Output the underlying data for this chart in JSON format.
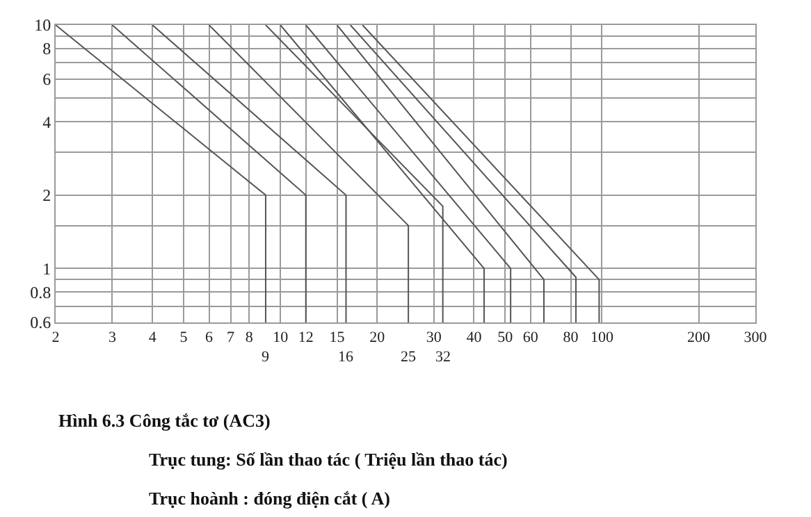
{
  "chart_data": {
    "type": "line",
    "log": "xy",
    "grid": true,
    "marker": "none",
    "line_style": "solid",
    "xlim": [
      2,
      300
    ],
    "ylim": [
      0.6,
      10
    ],
    "xticks": [
      2,
      3,
      4,
      5,
      6,
      7,
      8,
      10,
      12,
      15,
      20,
      30,
      40,
      50,
      60,
      80,
      100,
      200,
      300
    ],
    "yticks": [
      0.6,
      {
        "value": 0.7,
        "label": null
      },
      0.8,
      {
        "value": 0.9,
        "label": null
      },
      1,
      {
        "value": 1.5,
        "label": null
      },
      2,
      {
        "value": 3,
        "label": null
      },
      4,
      {
        "value": 5,
        "label": null
      },
      6,
      {
        "value": 7,
        "label": null
      },
      8,
      {
        "value": 9,
        "label": null
      },
      10
    ],
    "series": [
      {
        "color": "#555555",
        "x": [
          2,
          9,
          9
        ],
        "values": [
          10,
          2,
          0.6
        ]
      },
      {
        "color": "#555555",
        "x": [
          3,
          12,
          12
        ],
        "values": [
          10,
          2,
          0.6
        ]
      },
      {
        "color": "#555555",
        "x": [
          4,
          16,
          16
        ],
        "values": [
          10,
          2,
          0.6
        ]
      },
      {
        "color": "#555555",
        "x": [
          6,
          25,
          25
        ],
        "values": [
          10,
          1.5,
          0.6
        ]
      },
      {
        "color": "#555555",
        "x": [
          9,
          32,
          32
        ],
        "values": [
          10,
          1.8,
          0.6
        ]
      },
      {
        "color": "#555555",
        "x": [
          10,
          43,
          43
        ],
        "values": [
          10,
          1,
          0.6
        ]
      },
      {
        "color": "#555555",
        "x": [
          12,
          52,
          52
        ],
        "values": [
          10,
          1,
          0.6
        ]
      },
      {
        "color": "#555555",
        "x": [
          15,
          66,
          66
        ],
        "values": [
          10,
          0.9,
          0.6
        ]
      },
      {
        "color": "#555555",
        "x": [
          16.5,
          83,
          83
        ],
        "values": [
          10,
          0.92,
          0.6
        ]
      },
      {
        "color": "#555555",
        "x": [
          18,
          98,
          98
        ],
        "values": [
          10,
          0.9,
          0.6
        ]
      }
    ],
    "annotations": [
      {
        "text": "9",
        "x": 9,
        "y": 0.6
      },
      {
        "text": "16",
        "x": 16,
        "y": 0.6
      },
      {
        "text": "25",
        "x": 25,
        "y": 0.6
      },
      {
        "text": "32",
        "x": 32,
        "y": 0.6
      },
      "Hình 6.3 Công tắc tơ (AC3)",
      "Trục tung: Số lần thao tác ( Triệu lần thao tác)",
      "Trục hoành : đóng điện cắt ( A)"
    ]
  }
}
